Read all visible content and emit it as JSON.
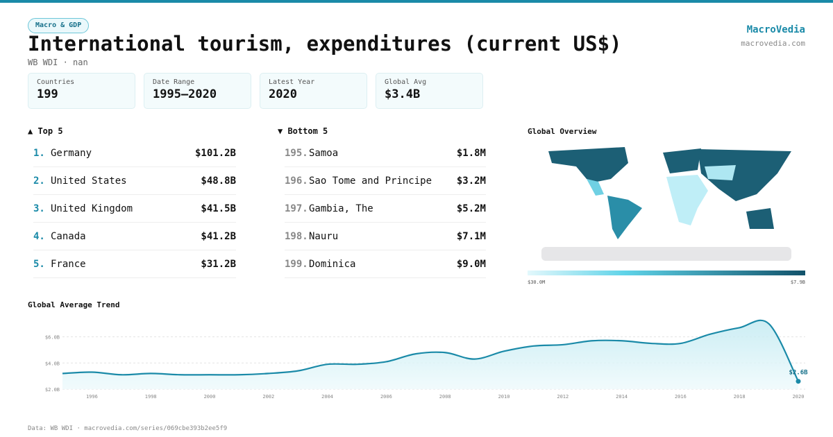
{
  "header": {
    "badge": "Macro & GDP",
    "title": "International tourism, expenditures (current US$)",
    "subtitle": "WB WDI · nan",
    "brand": "MacroVedia",
    "domain": "macrovedia.com"
  },
  "stats": [
    {
      "label": "Countries",
      "value": "199"
    },
    {
      "label": "Date Range",
      "value": "1995–2020"
    },
    {
      "label": "Latest Year",
      "value": "2020"
    },
    {
      "label": "Global Avg",
      "value": "$3.4B"
    }
  ],
  "top": {
    "heading": "▲ Top 5",
    "rows": [
      {
        "rank": "1.",
        "name": "Germany",
        "value": "$101.2B"
      },
      {
        "rank": "2.",
        "name": "United States",
        "value": "$48.8B"
      },
      {
        "rank": "3.",
        "name": "United Kingdom",
        "value": "$41.5B"
      },
      {
        "rank": "4.",
        "name": "Canada",
        "value": "$41.2B"
      },
      {
        "rank": "5.",
        "name": "France",
        "value": "$31.2B"
      }
    ]
  },
  "bottom": {
    "heading": "▼ Bottom 5",
    "rows": [
      {
        "rank": "195.",
        "name": "Samoa",
        "value": "$1.8M"
      },
      {
        "rank": "196.",
        "name": "Sao Tome and Principe",
        "value": "$3.2M"
      },
      {
        "rank": "197.",
        "name": "Gambia, The",
        "value": "$5.2M"
      },
      {
        "rank": "198.",
        "name": "Nauru",
        "value": "$7.1M"
      },
      {
        "rank": "199.",
        "name": "Dominica",
        "value": "$9.0M"
      }
    ]
  },
  "map": {
    "title": "Global Overview",
    "legend_min": "$30.0M",
    "legend_max": "$7.9B"
  },
  "chart_data": {
    "type": "line",
    "title": "Global Average Trend",
    "x": [
      1995,
      1996,
      1997,
      1998,
      1999,
      2000,
      2001,
      2002,
      2003,
      2004,
      2005,
      2006,
      2007,
      2008,
      2009,
      2010,
      2011,
      2012,
      2013,
      2014,
      2015,
      2016,
      2017,
      2018,
      2019,
      2020
    ],
    "values": [
      3.2,
      3.3,
      3.1,
      3.2,
      3.1,
      3.1,
      3.1,
      3.2,
      3.4,
      3.9,
      3.9,
      4.1,
      4.7,
      4.8,
      4.3,
      4.9,
      5.3,
      5.4,
      5.7,
      5.7,
      5.5,
      5.5,
      6.2,
      6.7,
      7.0,
      2.6
    ],
    "color": "#1a8aa8",
    "xlim": [
      1995,
      2020
    ],
    "ylim": [
      2,
      7.2
    ],
    "xticks": [
      1996,
      1998,
      2000,
      2002,
      2004,
      2006,
      2008,
      2010,
      2012,
      2014,
      2016,
      2018,
      2020
    ],
    "yticks": [
      {
        "value": 2,
        "label": "$2.0B"
      },
      {
        "value": 4,
        "label": "$4.0B"
      },
      {
        "value": 6,
        "label": "$6.0B"
      }
    ],
    "grid": true,
    "annotations": [
      {
        "text": "$2.6B",
        "x": 2020,
        "y": 2.6
      }
    ]
  },
  "footer": "Data: WB WDI · macrovedia.com/series/069cbe393b2ee5f9"
}
